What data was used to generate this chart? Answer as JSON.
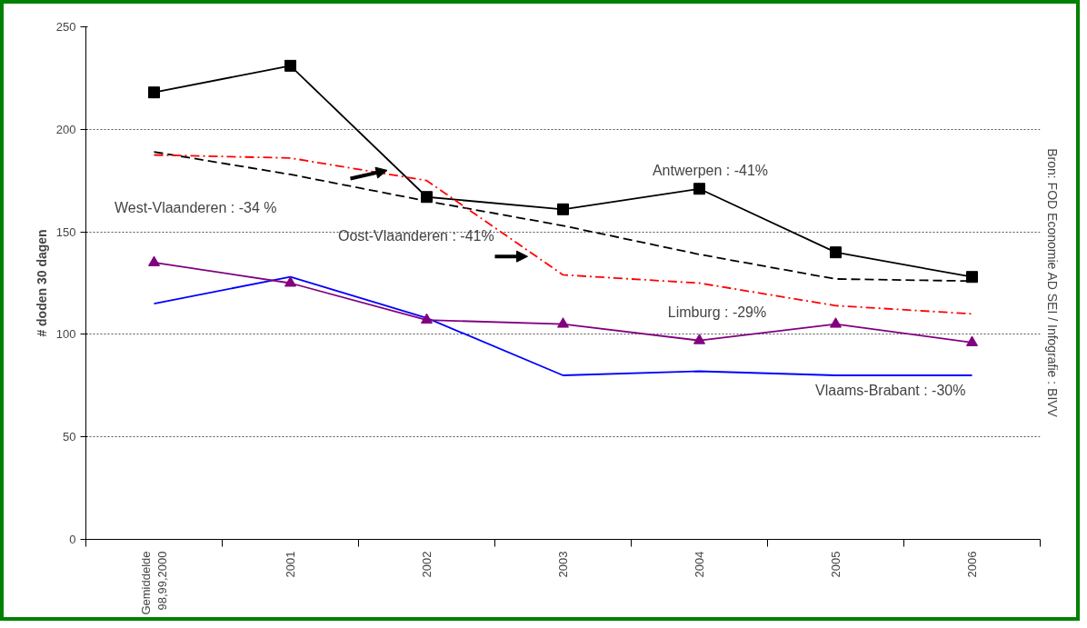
{
  "chart_data": {
    "type": "line",
    "ylabel": "# doden 30 dagen",
    "categories": [
      "Gemiddelde\n98,99,2000",
      "2001",
      "2002",
      "2003",
      "2004",
      "2005",
      "2006"
    ],
    "ylim": [
      0,
      250
    ],
    "yticks": [
      0,
      50,
      100,
      150,
      200,
      250
    ],
    "grid": "y",
    "series": [
      {
        "name": "Antwerpen : -41%",
        "color": "#000000",
        "marker": "square",
        "line_style": "solid",
        "values": [
          218,
          231,
          167,
          161,
          171,
          140,
          128
        ]
      },
      {
        "name": "West-Vlaanderen : -34 %",
        "color": "#000000",
        "marker": "none",
        "line_style": "dashed",
        "values": [
          189,
          178,
          165,
          153,
          139,
          127,
          126
        ]
      },
      {
        "name": "Oost-Vlaanderen : -41%",
        "color": "#ff0000",
        "marker": "none",
        "line_style": "dashdot",
        "values": [
          187.5,
          186,
          175,
          129,
          125,
          114,
          110
        ]
      },
      {
        "name": "Vlaams-Brabant : -30%",
        "color": "#0000ff",
        "marker": "none",
        "line_style": "solid",
        "values": [
          115,
          128,
          108,
          80,
          82,
          80,
          80
        ]
      },
      {
        "name": "Limburg : -29%",
        "color": "#800080",
        "marker": "triangle",
        "line_style": "solid",
        "values": [
          135,
          125,
          107,
          105,
          97,
          105,
          96
        ]
      }
    ],
    "annotations": [
      "Bron: FOD Economie AD SEI / Infografie : BIVV"
    ]
  }
}
